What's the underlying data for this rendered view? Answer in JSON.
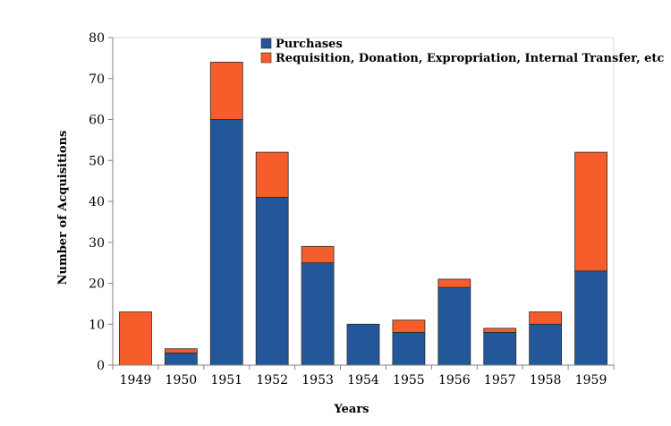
{
  "chart_data": {
    "type": "bar",
    "stacked": true,
    "title": "",
    "xlabel": "Years",
    "ylabel": "Number of Acquisitions",
    "categories": [
      "1949",
      "1950",
      "1951",
      "1952",
      "1953",
      "1954",
      "1955",
      "1956",
      "1957",
      "1958",
      "1959"
    ],
    "series": [
      {
        "name": "Purchases",
        "color": "#24579a",
        "values": [
          0,
          3,
          60,
          41,
          25,
          10,
          8,
          19,
          8,
          10,
          23
        ]
      },
      {
        "name": "Requisition, Donation, Expropriation, Internal Transfer, etc",
        "color": "#f55e2b",
        "values": [
          13,
          1,
          14,
          11,
          4,
          0,
          3,
          2,
          1,
          3,
          29
        ]
      }
    ],
    "ylim": [
      0,
      80
    ],
    "yticks": [
      0,
      10,
      20,
      30,
      40,
      50,
      60,
      70,
      80
    ],
    "grid": false,
    "legend_position": "top-right"
  }
}
